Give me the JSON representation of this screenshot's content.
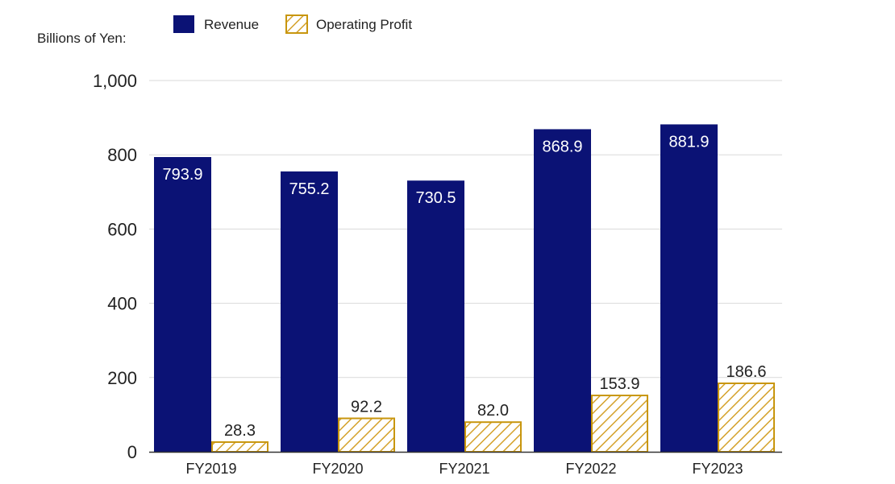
{
  "chart_data": {
    "type": "bar",
    "ylabel": "Billions of Yen:",
    "categories": [
      "FY2019",
      "FY2020",
      "FY2021",
      "FY2022",
      "FY2023"
    ],
    "series": [
      {
        "name": "Revenue",
        "values": [
          793.9,
          755.2,
          730.5,
          868.9,
          881.9
        ],
        "labels": [
          "793.9",
          "755.2",
          "730.5",
          "868.9",
          "881.9"
        ],
        "fill": "solid"
      },
      {
        "name": "Operating Profit",
        "values": [
          28.3,
          92.2,
          82.0,
          153.9,
          186.6
        ],
        "labels": [
          "28.3",
          "92.2",
          "82.0",
          "153.9",
          "186.6"
        ],
        "fill": "hatched"
      }
    ],
    "ylim": [
      0,
      1000
    ],
    "yticks": [
      "0",
      "200",
      "400",
      "600",
      "800",
      "1,000"
    ],
    "ytick_values": [
      0,
      200,
      400,
      600,
      800,
      1000
    ],
    "grid": true,
    "legend": "top-left"
  },
  "colors": {
    "revenue": "#0b1275",
    "profit": "#c8960e",
    "grid": "#d9d9d9",
    "axis": "#333333"
  }
}
